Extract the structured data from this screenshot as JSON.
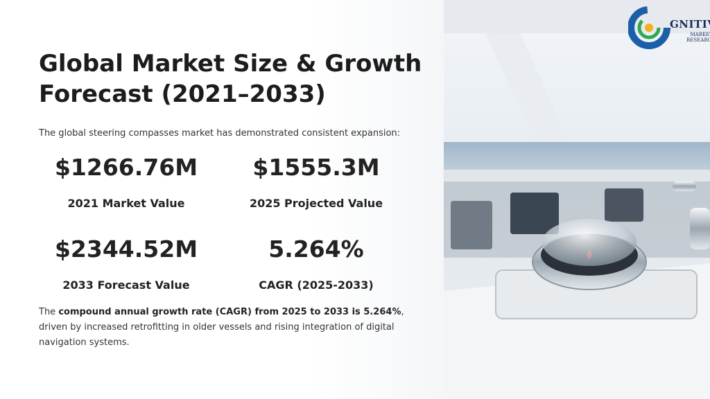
{
  "heading": {
    "line1": "Global Market Size & Growth",
    "line2": "Forecast (2021–2033)"
  },
  "intro": "The global steering compasses market has demonstrated consistent expansion:",
  "stats": [
    {
      "value": "$1266.76M",
      "label": "2021 Market Value"
    },
    {
      "value": "$1555.3M",
      "label": "2025 Projected Value"
    },
    {
      "value": "$2344.52M",
      "label": "2033 Forecast Value"
    },
    {
      "value": "5.264%",
      "label": "CAGR (2025-2033)"
    }
  ],
  "summary": {
    "prefix": "The ",
    "bold": "compound annual growth rate (CAGR) from 2025 to 2033 is 5.264%",
    "suffix": ", driven by increased retrofitting in older vessels and rising integration of digital navigation systems."
  },
  "logo": {
    "name": "GNITIVE",
    "line1": "MARKET",
    "line2": "RESEARCH"
  },
  "colors": {
    "logo_blue": "#1b5fa8",
    "logo_green": "#2fa84f",
    "logo_navy": "#1b2a5a"
  }
}
